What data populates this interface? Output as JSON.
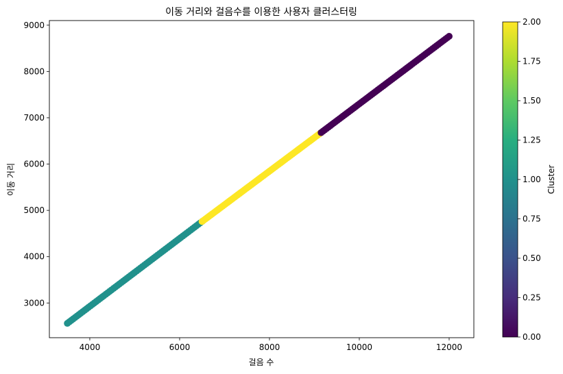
{
  "chart_data": {
    "type": "scatter",
    "title": "이동 거리와 걸음수를 이용한 사용자 클러스터링",
    "xlabel": "걸음 수",
    "ylabel": "이동 거리",
    "xlim": [
      3100,
      12550
    ],
    "ylim": [
      2250,
      9100
    ],
    "xticks": [
      "4000",
      "6000",
      "8000",
      "10000",
      "12000"
    ],
    "xtick_values": [
      4000,
      6000,
      8000,
      10000,
      12000
    ],
    "yticks": [
      "3000",
      "4000",
      "5000",
      "6000",
      "7000",
      "8000",
      "9000"
    ],
    "ytick_values": [
      3000,
      4000,
      5000,
      6000,
      7000,
      8000,
      9000
    ],
    "series": [
      {
        "cluster": 1,
        "color": "#21918c",
        "x_range": [
          3500,
          6500
        ],
        "y_range": [
          2560,
          4760
        ]
      },
      {
        "cluster": 2,
        "color": "#fde725",
        "x_range": [
          6500,
          9150
        ],
        "y_range": [
          4760,
          6680
        ]
      },
      {
        "cluster": 0,
        "color": "#440154",
        "x_range": [
          9150,
          12000
        ],
        "y_range": [
          6680,
          8760
        ]
      }
    ],
    "colorbar": {
      "label": "Cluster",
      "range": [
        0,
        2
      ],
      "colormap": "viridis",
      "ticks": [
        "0.00",
        "0.25",
        "0.50",
        "0.75",
        "1.00",
        "1.25",
        "1.50",
        "1.75",
        "2.00"
      ],
      "tick_values": [
        0,
        0.25,
        0.5,
        0.75,
        1.0,
        1.25,
        1.5,
        1.75,
        2.0
      ]
    },
    "grid": false
  }
}
